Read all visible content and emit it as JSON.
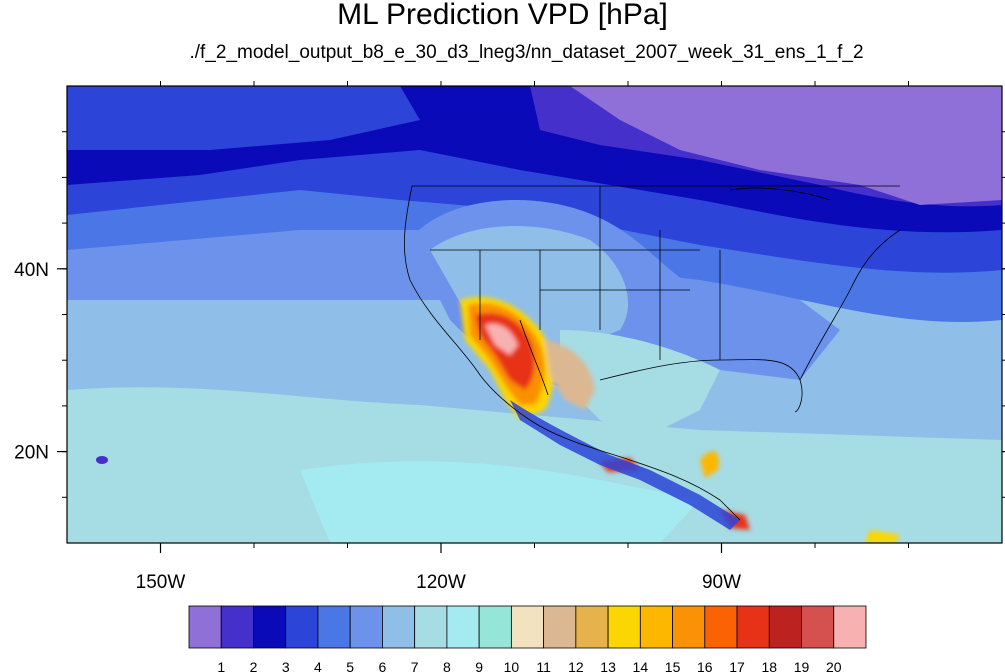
{
  "title": "ML Prediction VPD [hPa]",
  "subtitle": "./f_2_model_output_b8_e_30_d3_lneg3/nn_dataset_2007_week_31_ens_1_f_2",
  "map": {
    "lon_range": [
      -160,
      -60
    ],
    "lat_range": [
      10,
      60
    ],
    "x_ticks": [
      {
        "lon": -150,
        "label": "150W"
      },
      {
        "lon": -120,
        "label": "120W"
      },
      {
        "lon": -90,
        "label": "90W"
      }
    ],
    "y_ticks": [
      {
        "lat": 40,
        "label": "40N"
      },
      {
        "lat": 20,
        "label": "20N"
      }
    ]
  },
  "colorbar": {
    "colors": [
      "#8f6fd8",
      "#4630cc",
      "#0a0ab9",
      "#2c44d8",
      "#4b76e6",
      "#6c92ec",
      "#8fbee8",
      "#a6dce4",
      "#a3ebf1",
      "#95e6d9",
      "#f2e2c0",
      "#dcb892",
      "#e6b24c",
      "#fbd602",
      "#fdb701",
      "#fb9104",
      "#fb6204",
      "#e83217",
      "#bb2220",
      "#d4514f",
      "#f8b1b1"
    ],
    "labels": [
      "1",
      "2",
      "3",
      "4",
      "5",
      "6",
      "7",
      "8",
      "9",
      "10",
      "11",
      "12",
      "13",
      "14",
      "15",
      "16",
      "17",
      "18",
      "19",
      "20"
    ]
  }
}
